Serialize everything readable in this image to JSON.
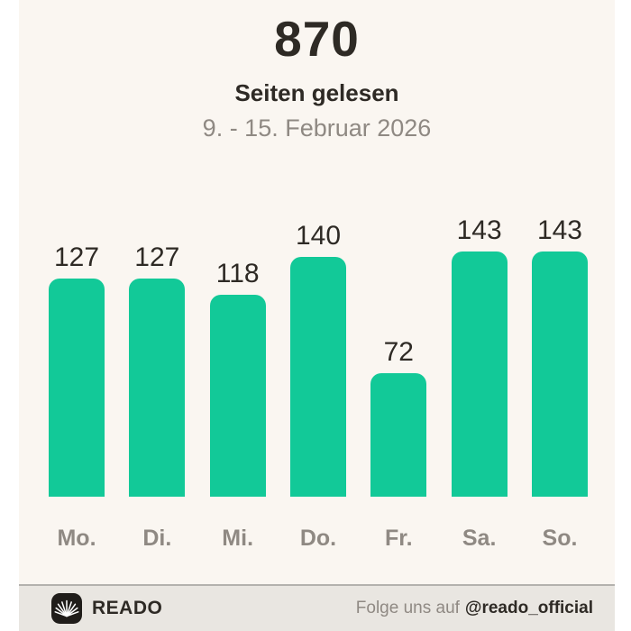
{
  "header": {
    "total": "870",
    "subtitle": "Seiten gelesen",
    "date_range": "9. - 15. Februar 2026"
  },
  "chart_data": {
    "type": "bar",
    "title": "Seiten gelesen",
    "subtitle": "9. - 15. Februar 2026",
    "total": 870,
    "categories": [
      "Mo.",
      "Di.",
      "Mi.",
      "Do.",
      "Fr.",
      "Sa.",
      "So."
    ],
    "values": [
      127,
      127,
      118,
      140,
      72,
      143,
      143
    ],
    "xlabel": "",
    "ylabel": "",
    "ylim": [
      0,
      143
    ],
    "grid": false,
    "legend": false,
    "value_labels_shown": true,
    "bar_color": "#12c998"
  },
  "footer": {
    "brand": "READO",
    "logo_icon": "open-book-fan-icon",
    "follow_prefix": "Folge uns auf",
    "follow_handle": "@reado_official"
  },
  "colors": {
    "outer_bg": "#ffffff",
    "card_bg": "#faf6f1",
    "bar": "#12c998",
    "text_dark": "#2e2a25",
    "text_gray": "#8f8983",
    "footer_bg": "#e9e6e1",
    "divider": "#b3b1ad",
    "logo_bg": "#201d1a"
  }
}
